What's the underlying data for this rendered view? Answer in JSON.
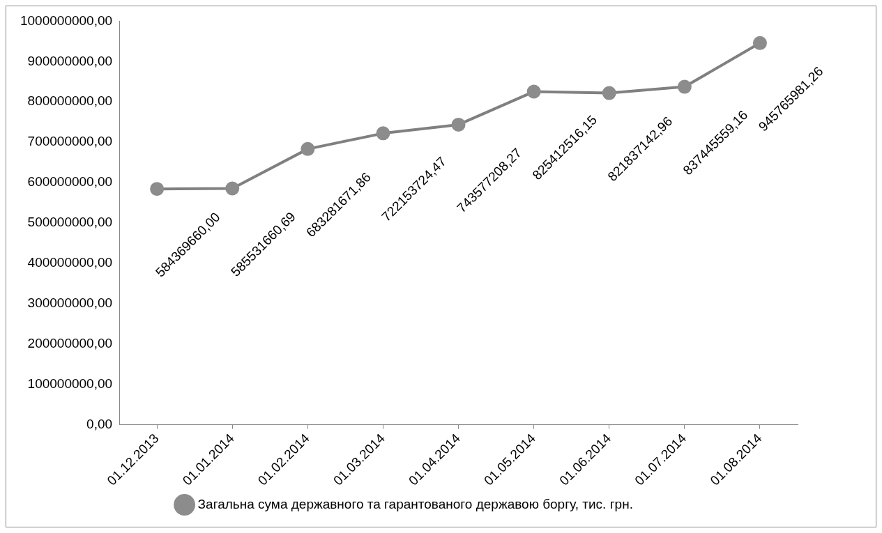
{
  "chart_data": {
    "type": "line",
    "categories": [
      "01.12.2013",
      "01.01.2014",
      "01.02.2014",
      "01.03.2014",
      "01.04.2014",
      "01.05.2014",
      "01.06.2014",
      "01.07.2014",
      "01.08.2014"
    ],
    "series": [
      {
        "name": "Загальна сума державного та гарантованого державою боргу, тис. грн.",
        "color": "#808080",
        "values": [
          584369660.0,
          585531660.69,
          683281671.86,
          722153724.47,
          743577208.27,
          825412516.15,
          821837142.96,
          837445559.16,
          945765981.26
        ],
        "value_labels": [
          "584369660,00",
          "585531660,69",
          "683281671,86",
          "722153724,47",
          "743577208,27",
          "825412516,15",
          "821837142,96",
          "837445559,16",
          "945765981,26"
        ]
      }
    ],
    "ylim": [
      0,
      1000000000
    ],
    "yticks": [
      {
        "value": 0,
        "label": "0,00"
      },
      {
        "value": 100000000,
        "label": "100000000,00"
      },
      {
        "value": 200000000,
        "label": "200000000,00"
      },
      {
        "value": 300000000,
        "label": "300000000,00"
      },
      {
        "value": 400000000,
        "label": "400000000,00"
      },
      {
        "value": 500000000,
        "label": "500000000,00"
      },
      {
        "value": 600000000,
        "label": "600000000,00"
      },
      {
        "value": 700000000,
        "label": "700000000,00"
      },
      {
        "value": 800000000,
        "label": "800000000,00"
      },
      {
        "value": 900000000,
        "label": "900000000,00"
      },
      {
        "value": 1000000000,
        "label": "1000000000,00"
      }
    ],
    "grid": false,
    "legend": "bottom",
    "marker": "circle",
    "line_style": "solid"
  }
}
